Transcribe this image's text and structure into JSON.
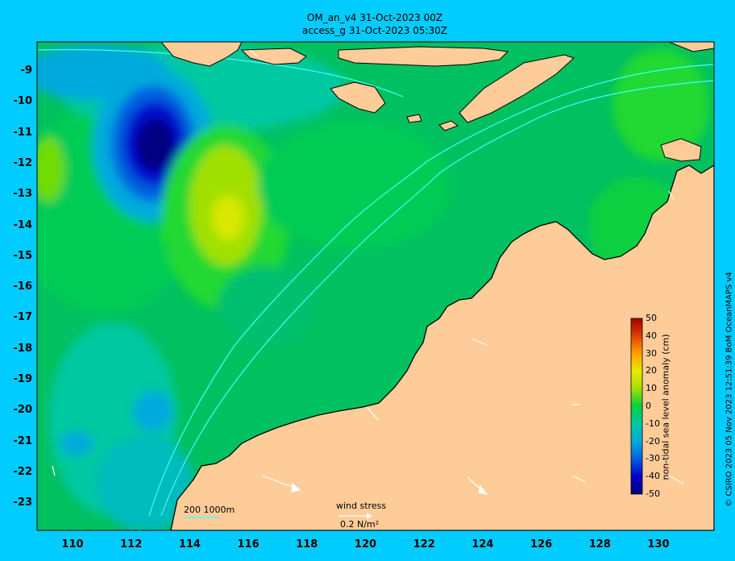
{
  "title_line1": "OM_an_v4  31-Oct-2023 00Z",
  "title_line2": "access_g 31-Oct-2023 05:30Z",
  "credit": "© CSIRO 2023  05 Nov 2023 12:51:39 BoM OceanMAPS v4",
  "colorbar": {
    "title": "non-tidal sea level anomaly (cm)",
    "ticks": [
      "50",
      "40",
      "30",
      "20",
      "10",
      "0",
      "-10",
      "-20",
      "-30",
      "-40",
      "-50"
    ],
    "range": [
      -50,
      50
    ]
  },
  "axes": {
    "lon_ticks": [
      "110",
      "112",
      "114",
      "116",
      "118",
      "120",
      "122",
      "124",
      "126",
      "128",
      "130"
    ],
    "lat_ticks": [
      "-9",
      "-10",
      "-11",
      "-12",
      "-13",
      "-14",
      "-15",
      "-16",
      "-17",
      "-18",
      "-19",
      "-20",
      "-21",
      "-22",
      "-23"
    ],
    "lon_range": [
      109,
      132
    ],
    "lat_range": [
      -23.9,
      -8.0
    ]
  },
  "legend": {
    "isobaths": "200  1000m",
    "wind_label": "wind stress",
    "wind_scale": "0.2 N/m²"
  },
  "colors": {
    "land": "#fdcc99",
    "frame": "#00ccff",
    "isobath": "#40ffff"
  }
}
